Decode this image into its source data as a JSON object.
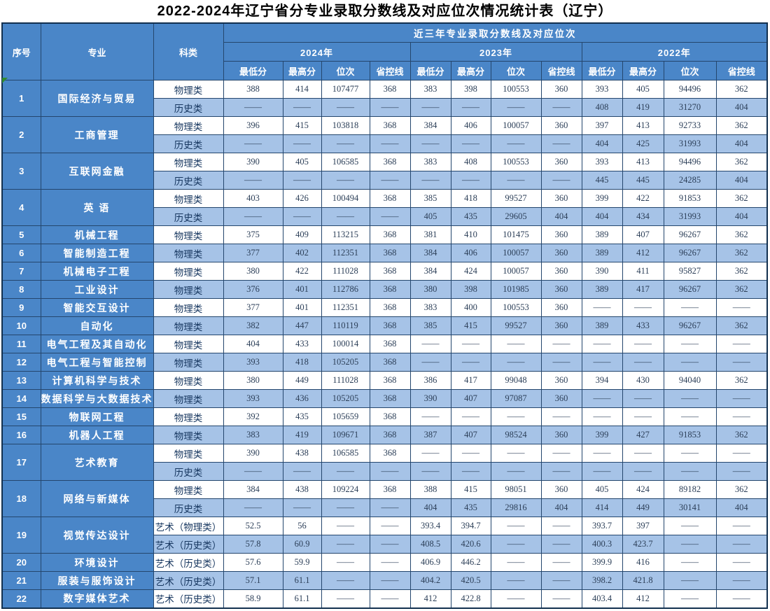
{
  "title": "2022-2024年辽宁省分专业录取分数线及对应位次情况统计表（辽宁）",
  "colors": {
    "header_blue": "#4a86c8",
    "row_alt_blue": "#a6c3e7",
    "row_plain": "#ffffff",
    "border_navy": "#24466d",
    "label_text": "#ffffff",
    "value_text": "#2c3f58",
    "artifact_green": "#2f8b2f"
  },
  "table": {
    "header": {
      "seq": "序号",
      "major": "专业",
      "category": "科类",
      "span": "近三年专业录取分数线及对应位次",
      "years": [
        {
          "label": "2024年",
          "cols": [
            "最低分",
            "最高分",
            "位次",
            "省控线"
          ]
        },
        {
          "label": "2023年",
          "cols": [
            "最低分",
            "最高分",
            "位次",
            "省控线"
          ]
        },
        {
          "label": "2022年",
          "cols": [
            "最低分",
            "最高分",
            "位次",
            "省控线"
          ]
        }
      ]
    },
    "rows": [
      {
        "no": "1",
        "major": "国际经济与贸易",
        "subs": [
          {
            "category": "物理类",
            "values": [
              "388",
              "414",
              "107477",
              "368",
              "383",
              "398",
              "100553",
              "360",
              "393",
              "405",
              "94496",
              "362"
            ]
          },
          {
            "category": "历史类",
            "values": [
              "——",
              "——",
              "——",
              "——",
              "——",
              "——",
              "——",
              "——",
              "408",
              "419",
              "31270",
              "404"
            ]
          }
        ]
      },
      {
        "no": "2",
        "major": "工商管理",
        "subs": [
          {
            "category": "物理类",
            "values": [
              "396",
              "415",
              "103818",
              "368",
              "384",
              "406",
              "100057",
              "360",
              "397",
              "413",
              "92733",
              "362"
            ]
          },
          {
            "category": "历史类",
            "values": [
              "——",
              "——",
              "——",
              "——",
              "——",
              "——",
              "——",
              "——",
              "404",
              "425",
              "31993",
              "404"
            ]
          }
        ]
      },
      {
        "no": "3",
        "major": "互联网金融",
        "subs": [
          {
            "category": "物理类",
            "values": [
              "390",
              "405",
              "106585",
              "368",
              "383",
              "408",
              "100553",
              "360",
              "393",
              "413",
              "94496",
              "362"
            ]
          },
          {
            "category": "历史类",
            "values": [
              "——",
              "——",
              "——",
              "——",
              "——",
              "——",
              "——",
              "——",
              "445",
              "445",
              "24285",
              "404"
            ]
          }
        ]
      },
      {
        "no": "4",
        "major": "英 语",
        "subs": [
          {
            "category": "物理类",
            "values": [
              "403",
              "426",
              "100494",
              "368",
              "385",
              "418",
              "99527",
              "360",
              "399",
              "422",
              "91853",
              "362"
            ]
          },
          {
            "category": "历史类",
            "values": [
              "——",
              "——",
              "——",
              "——",
              "405",
              "435",
              "29605",
              "404",
              "404",
              "434",
              "31993",
              "404"
            ]
          }
        ]
      },
      {
        "no": "5",
        "major": "机械工程",
        "subs": [
          {
            "category": "物理类",
            "values": [
              "375",
              "409",
              "113215",
              "368",
              "381",
              "410",
              "101475",
              "360",
              "389",
              "407",
              "96267",
              "362"
            ]
          }
        ]
      },
      {
        "no": "6",
        "major": "智能制造工程",
        "subs": [
          {
            "category": "物理类",
            "values": [
              "377",
              "402",
              "112351",
              "368",
              "384",
              "406",
              "100057",
              "360",
              "389",
              "412",
              "96267",
              "362"
            ]
          }
        ]
      },
      {
        "no": "7",
        "major": "机械电子工程",
        "subs": [
          {
            "category": "物理类",
            "values": [
              "380",
              "422",
              "111028",
              "368",
              "384",
              "424",
              "100057",
              "360",
              "390",
              "411",
              "95827",
              "362"
            ]
          }
        ]
      },
      {
        "no": "8",
        "major": "工业设计",
        "subs": [
          {
            "category": "物理类",
            "values": [
              "376",
              "401",
              "112786",
              "368",
              "380",
              "398",
              "101985",
              "360",
              "389",
              "417",
              "96267",
              "362"
            ]
          }
        ]
      },
      {
        "no": "9",
        "major": "智能交互设计",
        "subs": [
          {
            "category": "物理类",
            "values": [
              "377",
              "401",
              "112351",
              "368",
              "383",
              "400",
              "100553",
              "360",
              "——",
              "——",
              "——",
              "——"
            ]
          }
        ]
      },
      {
        "no": "10",
        "major": "自动化",
        "subs": [
          {
            "category": "物理类",
            "values": [
              "382",
              "447",
              "110119",
              "368",
              "385",
              "415",
              "99527",
              "360",
              "389",
              "433",
              "96267",
              "362"
            ]
          }
        ]
      },
      {
        "no": "11",
        "major": "电气工程及其自动化",
        "subs": [
          {
            "category": "物理类",
            "values": [
              "404",
              "433",
              "100014",
              "368",
              "——",
              "——",
              "——",
              "——",
              "——",
              "——",
              "——",
              "——"
            ]
          }
        ]
      },
      {
        "no": "12",
        "major": "电气工程与智能控制",
        "subs": [
          {
            "category": "物理类",
            "values": [
              "393",
              "418",
              "105205",
              "368",
              "——",
              "——",
              "——",
              "——",
              "——",
              "——",
              "——",
              "——"
            ]
          }
        ]
      },
      {
        "no": "13",
        "major": "计算机科学与技术",
        "subs": [
          {
            "category": "物理类",
            "values": [
              "380",
              "449",
              "111028",
              "368",
              "386",
              "417",
              "99048",
              "360",
              "394",
              "430",
              "94040",
              "362"
            ]
          }
        ]
      },
      {
        "no": "14",
        "major": "数据科学与大数据技术",
        "subs": [
          {
            "category": "物理类",
            "values": [
              "393",
              "436",
              "105205",
              "368",
              "390",
              "407",
              "97087",
              "360",
              "——",
              "——",
              "——",
              "——"
            ]
          }
        ]
      },
      {
        "no": "15",
        "major": "物联网工程",
        "subs": [
          {
            "category": "物理类",
            "values": [
              "392",
              "435",
              "105659",
              "368",
              "——",
              "——",
              "——",
              "——",
              "——",
              "——",
              "——",
              "——"
            ]
          }
        ]
      },
      {
        "no": "16",
        "major": "机器人工程",
        "subs": [
          {
            "category": "物理类",
            "values": [
              "383",
              "419",
              "109671",
              "368",
              "387",
              "407",
              "98524",
              "360",
              "399",
              "427",
              "91853",
              "362"
            ]
          }
        ]
      },
      {
        "no": "17",
        "major": "艺术教育",
        "subs": [
          {
            "category": "物理类",
            "values": [
              "390",
              "438",
              "106585",
              "368",
              "——",
              "——",
              "——",
              "——",
              "——",
              "——",
              "——",
              "——"
            ]
          },
          {
            "category": "历史类",
            "values": [
              "——",
              "——",
              "——",
              "——",
              "——",
              "——",
              "——",
              "——",
              "——",
              "——",
              "——",
              "——"
            ]
          }
        ]
      },
      {
        "no": "18",
        "major": "网络与新媒体",
        "subs": [
          {
            "category": "物理类",
            "values": [
              "384",
              "438",
              "109224",
              "368",
              "388",
              "415",
              "98051",
              "360",
              "405",
              "424",
              "89182",
              "362"
            ]
          },
          {
            "category": "历史类",
            "values": [
              "——",
              "——",
              "——",
              "——",
              "404",
              "435",
              "29816",
              "404",
              "414",
              "449",
              "30141",
              "404"
            ]
          }
        ]
      },
      {
        "no": "19",
        "major": "视觉传达设计",
        "subs": [
          {
            "category": "艺术（物理类）",
            "values": [
              "52.5",
              "56",
              "——",
              "——",
              "393.4",
              "394.7",
              "——",
              "——",
              "393.7",
              "397",
              "——",
              "——"
            ]
          },
          {
            "category": "艺术（历史类）",
            "values": [
              "57.8",
              "60.9",
              "——",
              "——",
              "408.5",
              "420.6",
              "——",
              "——",
              "400.3",
              "423.7",
              "——",
              "——"
            ]
          }
        ]
      },
      {
        "no": "20",
        "major": "环境设计",
        "subs": [
          {
            "category": "艺术（历史类）",
            "values": [
              "57.6",
              "59.9",
              "——",
              "——",
              "406.9",
              "446.2",
              "——",
              "——",
              "399.9",
              "416",
              "——",
              "——"
            ]
          }
        ]
      },
      {
        "no": "21",
        "major": "服装与服饰设计",
        "subs": [
          {
            "category": "艺术（历史类）",
            "values": [
              "57.1",
              "61.1",
              "——",
              "——",
              "404.2",
              "420.5",
              "——",
              "——",
              "398.2",
              "421.8",
              "——",
              "——"
            ]
          }
        ]
      },
      {
        "no": "22",
        "major": "数字媒体艺术",
        "subs": [
          {
            "category": "艺术（历史类）",
            "values": [
              "58.9",
              "61.1",
              "——",
              "——",
              "412",
              "422.8",
              "——",
              "——",
              "403.4",
              "412",
              "——",
              "——"
            ]
          }
        ]
      }
    ]
  }
}
